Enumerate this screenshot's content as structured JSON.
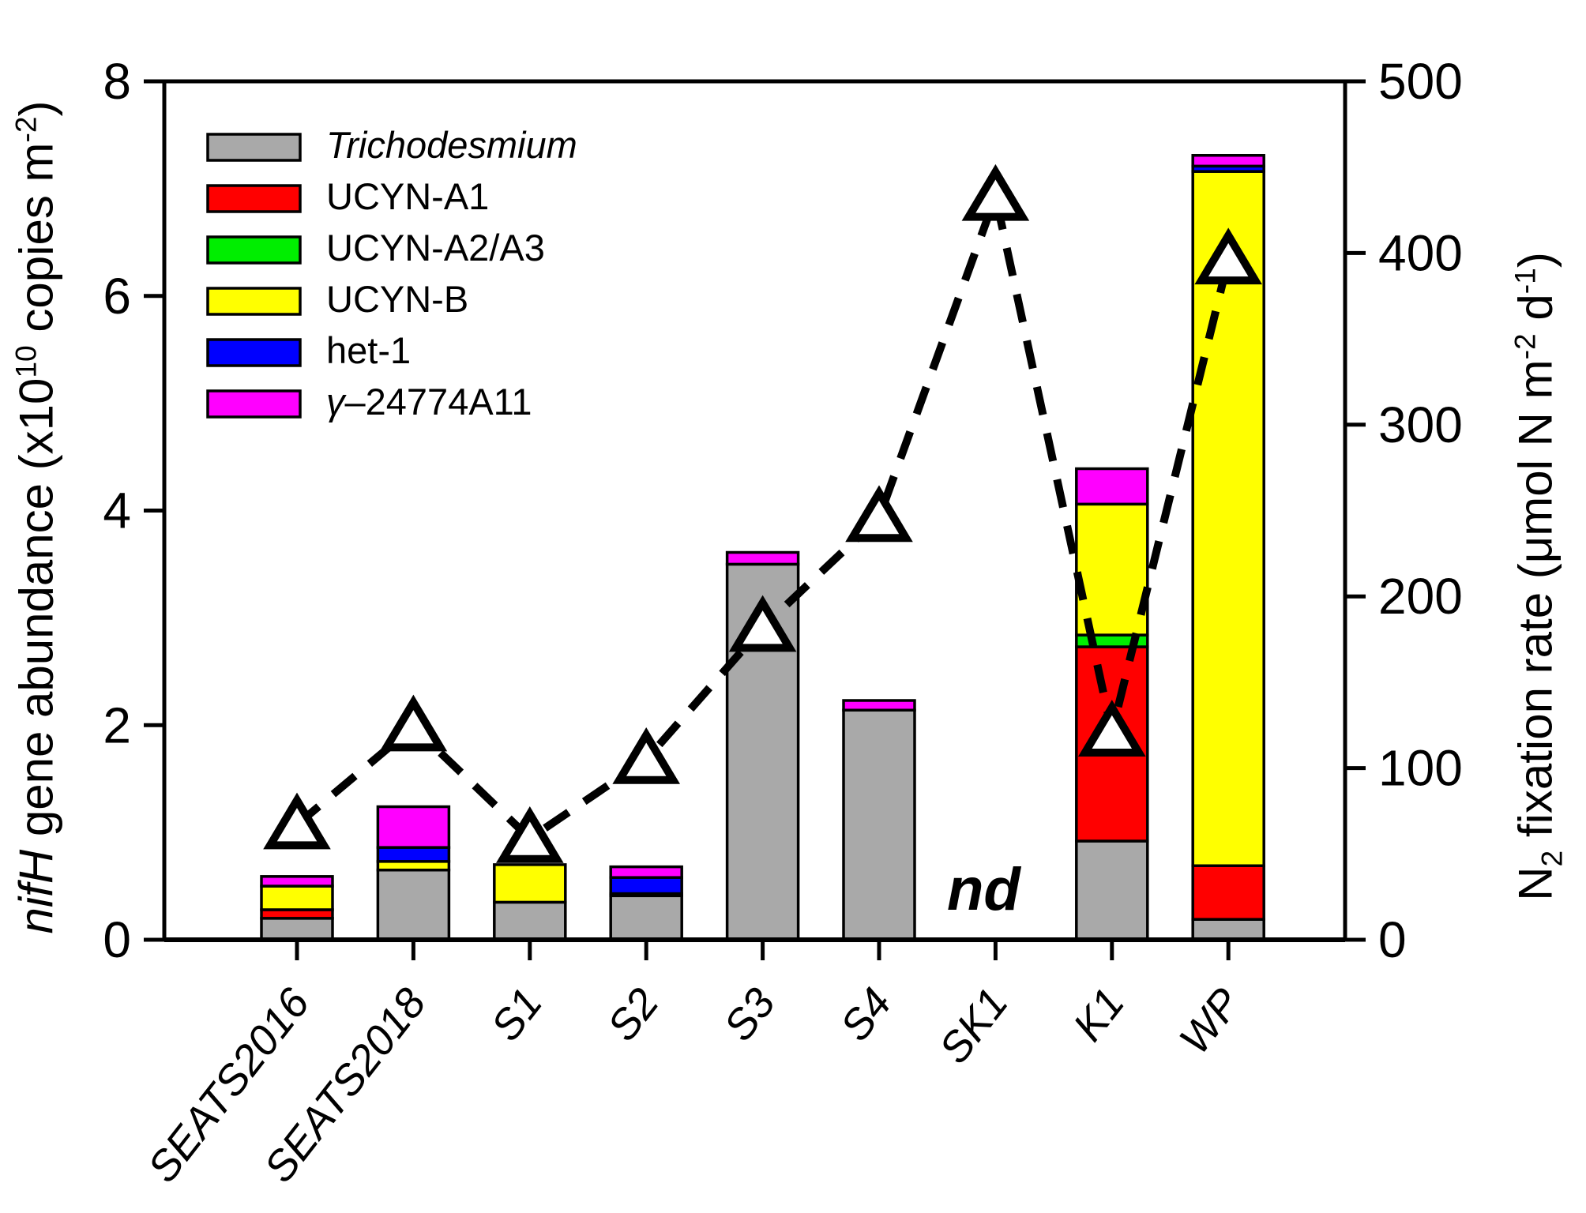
{
  "chart_data": {
    "type": "bar+line",
    "categories": [
      "SEATS2016",
      "SEATS2018",
      "S1",
      "S2",
      "S3",
      "S4",
      "SK1",
      "K1",
      "WP"
    ],
    "stacked_bar_series": [
      {
        "name": "Trichodesmium",
        "color": "#a9a9a9",
        "italic": true,
        "serif": false,
        "values": [
          0.2,
          0.65,
          0.35,
          0.41,
          3.5,
          2.14,
          0,
          0.92,
          0.19
        ]
      },
      {
        "name": "UCYN-A1",
        "color": "#ff0000",
        "italic": false,
        "serif": false,
        "values": [
          0.08,
          0,
          0,
          0,
          0,
          0,
          0,
          1.81,
          0.5
        ]
      },
      {
        "name": "UCYN-A2/A3",
        "color": "#00ee00",
        "italic": false,
        "serif": false,
        "values": [
          0,
          0,
          0,
          0,
          0,
          0,
          0,
          0.11,
          0
        ]
      },
      {
        "name": "UCYN-B",
        "color": "#ffff00",
        "italic": false,
        "serif": false,
        "values": [
          0.22,
          0.08,
          0.35,
          0.02,
          0,
          0,
          0,
          1.22,
          6.47
        ]
      },
      {
        "name": "het-1",
        "color": "#0000ff",
        "italic": false,
        "serif": false,
        "values": [
          0,
          0.13,
          0,
          0.15,
          0,
          0,
          0,
          0,
          0.05
        ]
      },
      {
        "name": "γ–24774A11",
        "color": "#ff00ff",
        "italic": false,
        "serif": true,
        "values": [
          0.09,
          0.38,
          0,
          0.1,
          0.11,
          0.09,
          0,
          0.33,
          0.1
        ]
      }
    ],
    "line_series": {
      "name": "N2 fixation rate",
      "marker": "triangle-up",
      "line_style": "dashed",
      "color": "#000000",
      "values": [
        67,
        124,
        59,
        105,
        182,
        246,
        433,
        121,
        396
      ]
    },
    "left_axis": {
      "range": [
        0,
        8
      ],
      "ticks": [
        0,
        2,
        4,
        6,
        8
      ],
      "title_parts": {
        "p1": "nifH",
        "p2": " gene abundance (x10",
        "sup1": "10",
        "p3": " copies m",
        "sup2": "-2",
        "p4": ")"
      }
    },
    "right_axis": {
      "range": [
        0,
        500
      ],
      "ticks": [
        0,
        100,
        200,
        300,
        400,
        500
      ],
      "title_parts": {
        "p1": "N",
        "sub1": "2",
        "p2": " fixation rate (μmol N m",
        "sup1": "-2",
        "p3": " d",
        "sup2": "-1",
        "p4": ")"
      }
    },
    "annotations": [
      {
        "text": "nd",
        "category": "SK1"
      }
    ],
    "legend_position": "top-left-inside",
    "grid": false
  }
}
